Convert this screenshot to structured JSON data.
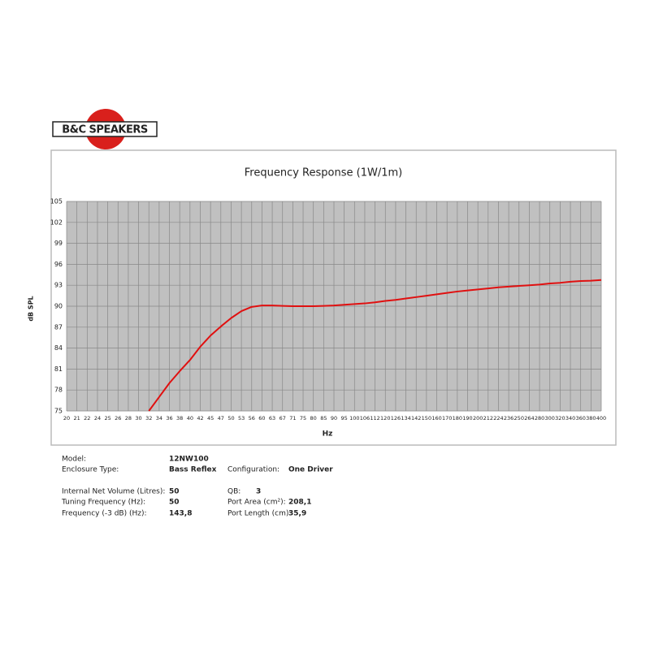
{
  "logo": "B&C SPEAKERS",
  "chart_data": {
    "type": "line",
    "title": "Frequency Response (1W/1m)",
    "x_label": "Hz",
    "y_label": "dB SPL",
    "categories": [
      "20",
      "21",
      "22",
      "24",
      "25",
      "26",
      "28",
      "30",
      "32",
      "34",
      "36",
      "38",
      "40",
      "42",
      "45",
      "47",
      "50",
      "53",
      "56",
      "60",
      "63",
      "67",
      "71",
      "75",
      "80",
      "85",
      "90",
      "95",
      "100",
      "106",
      "112",
      "120",
      "126",
      "134",
      "142",
      "150",
      "160",
      "170",
      "180",
      "190",
      "200",
      "212",
      "224",
      "236",
      "250",
      "264",
      "280",
      "300",
      "320",
      "340",
      "360",
      "380",
      "400"
    ],
    "series": [
      {
        "name": "SPL",
        "color": "#e01010",
        "values": [
          null,
          null,
          null,
          null,
          null,
          null,
          null,
          null,
          75,
          77,
          79,
          80.7,
          82.3,
          84.2,
          85.8,
          87.1,
          88.3,
          89.3,
          89.9,
          90.1,
          90.1,
          90.05,
          90.0,
          90.0,
          90.0,
          90.05,
          90.1,
          90.2,
          90.3,
          90.4,
          90.55,
          90.75,
          90.9,
          91.1,
          91.3,
          91.5,
          91.7,
          91.9,
          92.1,
          92.25,
          92.4,
          92.55,
          92.7,
          92.8,
          92.9,
          93.0,
          93.1,
          93.25,
          93.35,
          93.5,
          93.6,
          93.65,
          93.75
        ]
      }
    ],
    "ylim": [
      75,
      105
    ],
    "yticks": [
      75,
      78,
      81,
      84,
      87,
      90,
      93,
      96,
      99,
      102,
      105
    ],
    "grid": true
  },
  "specs": {
    "model": {
      "label": "Model:",
      "value": "12NW100"
    },
    "enclosure": {
      "label": "Enclosure Type:",
      "value": "Bass Reflex"
    },
    "configuration": {
      "label": "Configuration:",
      "value": "One Driver"
    },
    "volume": {
      "label": "Internal  Net Volume (Litres):",
      "value": "50"
    },
    "qb": {
      "label": "QB:",
      "value": "3"
    },
    "tuning": {
      "label": "Tuning Frequency (Hz):",
      "value": "50"
    },
    "port_area": {
      "label": "Port Area (cm²):",
      "value": "208,1"
    },
    "f3": {
      "label": "Frequency (-3 dB) (Hz):",
      "value": "143,8"
    },
    "port_length": {
      "label": "Port Length (cm):",
      "value": "35,9"
    }
  }
}
